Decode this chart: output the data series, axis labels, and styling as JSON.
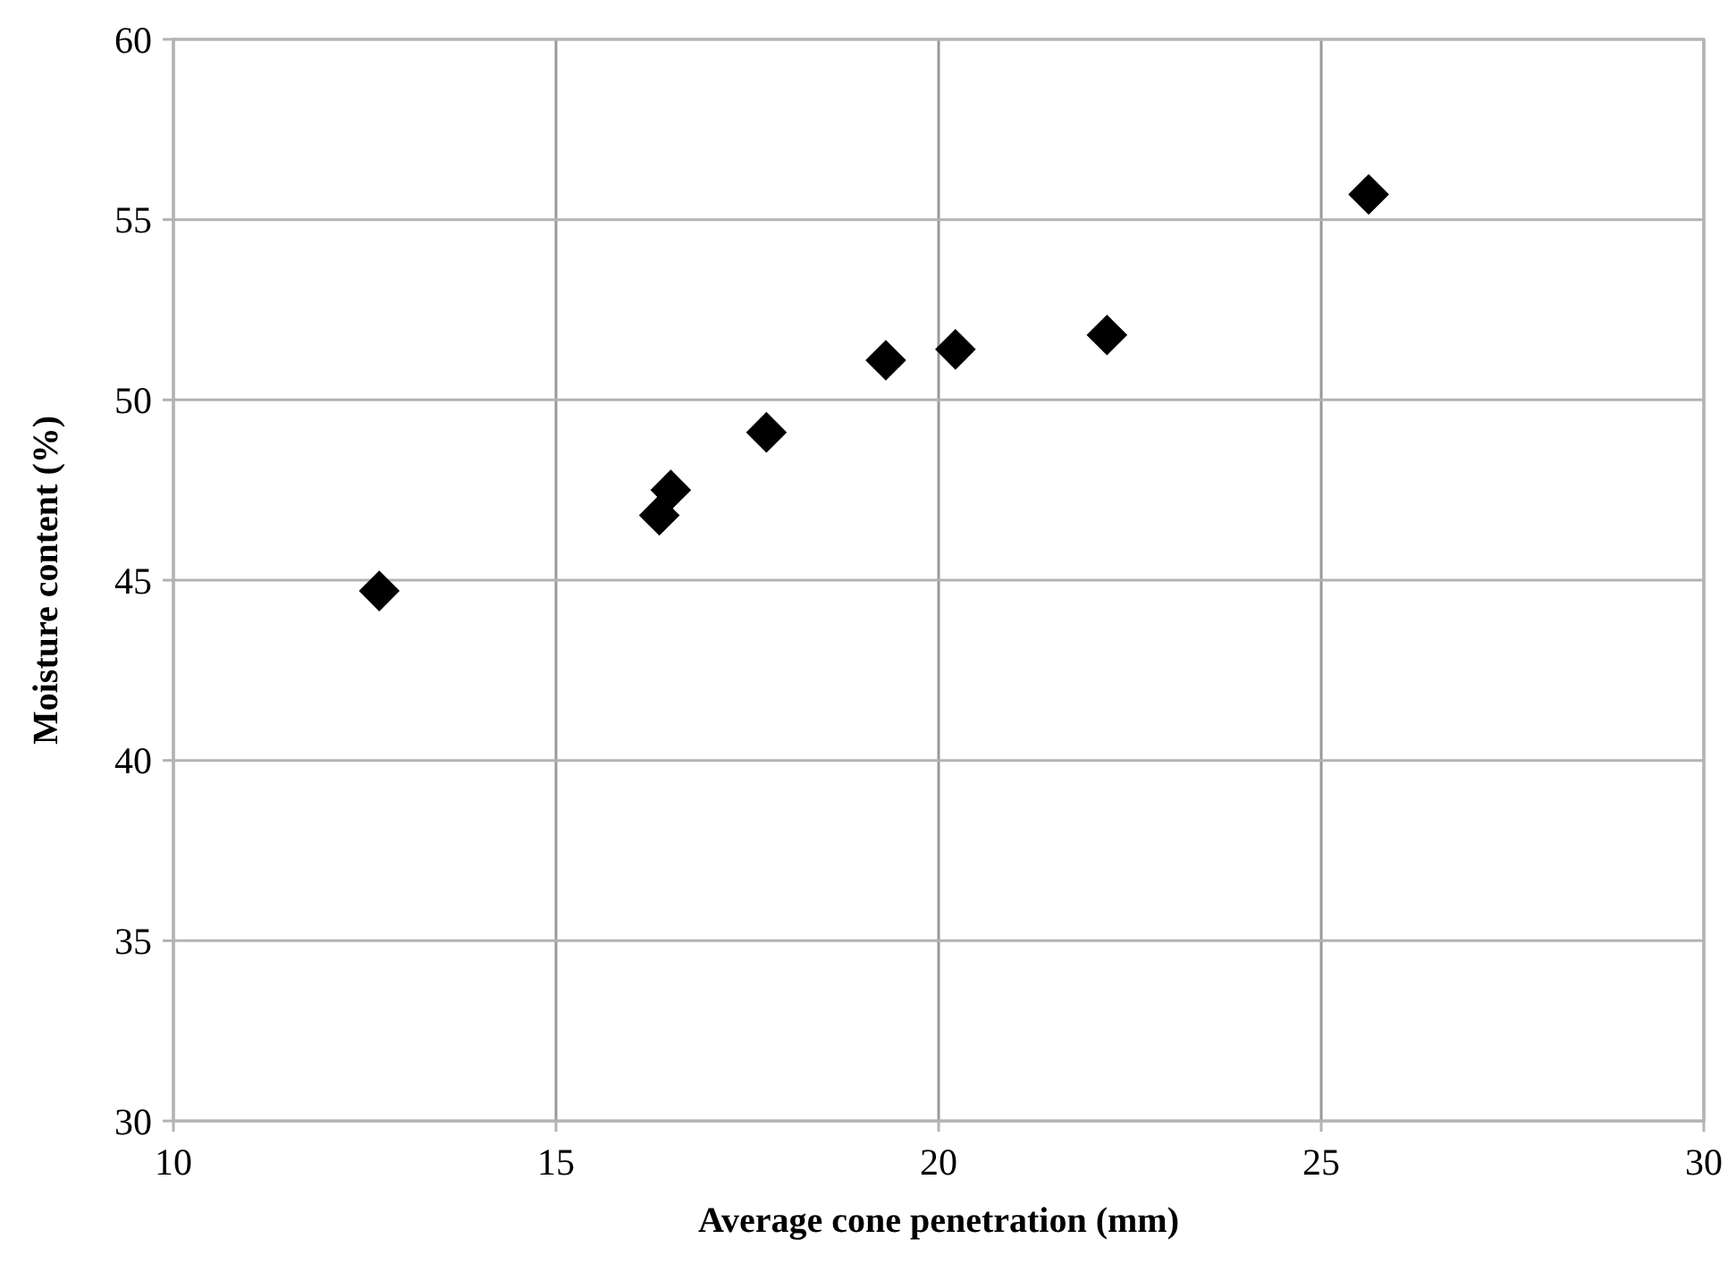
{
  "chart_data": {
    "type": "scatter",
    "xlabel": "Average cone penetration (mm)",
    "ylabel": "Moisture content (%)",
    "x": [
      12.69,
      16.35,
      16.5,
      17.75,
      19.31,
      20.22,
      22.2,
      25.62
    ],
    "values": [
      44.7,
      46.8,
      47.5,
      49.1,
      51.1,
      51.4,
      51.8,
      55.7
    ],
    "color": "#000000",
    "marker": "diamond",
    "xlim": [
      10,
      30
    ],
    "xticks": [
      10,
      15,
      20,
      25,
      30
    ],
    "ylim": [
      30,
      60
    ],
    "yticks": [
      30,
      35,
      40,
      45,
      50,
      55,
      60
    ],
    "grid": true
  }
}
